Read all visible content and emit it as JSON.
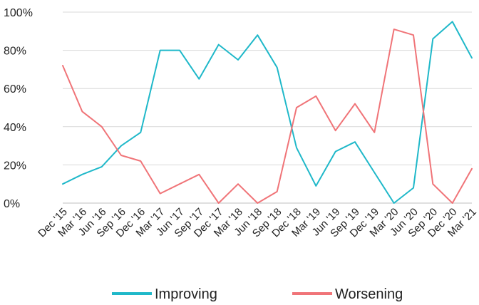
{
  "chart_data": {
    "type": "line",
    "title": "",
    "xlabel": "",
    "ylabel": "",
    "ylim": [
      0,
      100
    ],
    "yticks": [
      0,
      20,
      40,
      60,
      80,
      100
    ],
    "ytick_labels": [
      "0%",
      "20%",
      "40%",
      "60%",
      "80%",
      "100%"
    ],
    "grid": true,
    "legend_position": "bottom",
    "categories": [
      "Dec '15",
      "Mar '16",
      "Jun '16",
      "Sep '16",
      "Dec '16",
      "Mar '17",
      "Jun '17",
      "Sep '17",
      "Dec '17",
      "Mar '18",
      "Jun '18",
      "Sep '18",
      "Dec '18",
      "Mar '19",
      "Jun '19",
      "Sep '19",
      "Dec '19",
      "Mar '20",
      "Jun '20",
      "Sep '20",
      "Dec '20",
      "Mar '21"
    ],
    "series": [
      {
        "name": "Improving",
        "color": "#1fb8c9",
        "values": [
          10,
          15,
          19,
          30,
          37,
          80,
          80,
          65,
          83,
          75,
          88,
          71,
          29,
          9,
          27,
          32,
          16,
          0,
          8,
          86,
          95,
          76
        ]
      },
      {
        "name": "Worsening",
        "color": "#f07478",
        "values": [
          72,
          48,
          40,
          25,
          22,
          5,
          10,
          15,
          0,
          10,
          0,
          6,
          50,
          56,
          38,
          52,
          37,
          91,
          88,
          10,
          0,
          18
        ]
      }
    ]
  }
}
